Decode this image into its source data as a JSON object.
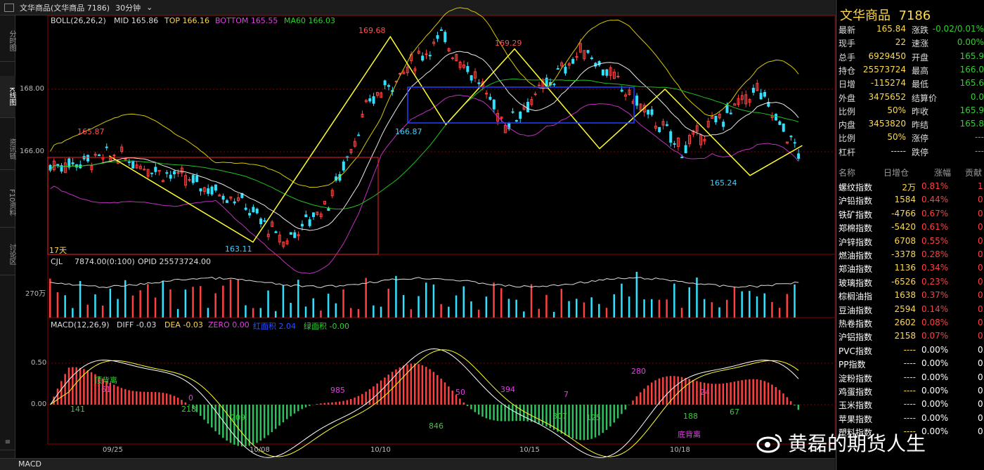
{
  "window": {
    "title": "文华商品(文华商品 7186)",
    "period": "30分钟"
  },
  "sidebar": {
    "tabs": [
      "分时图",
      "K线图",
      "资讯链",
      "F10资料",
      "讨论区"
    ],
    "bottom": "≡"
  },
  "indicators": {
    "boll": "BOLL(26,26,2)",
    "mid": "MID 165.86",
    "top": "TOP 166.16",
    "bottom": "BOTTOM 165.55",
    "ma60": "MA60 166.03",
    "cjl": "CJL",
    "vol": "7874.00(0:100)",
    "opid": "OPID 25573724.00",
    "macd": "MACD(12,26,9)",
    "diff": "DIFF -0.03",
    "dea": "DEA -0.03",
    "zero": "ZERO 0.00",
    "red_area": "红面积 2.04",
    "green_area": "绿面积 -0.00"
  },
  "axes": {
    "price": [
      "168.00",
      "166.00"
    ],
    "vol": "270万",
    "macd": [
      "0.50",
      "0.00"
    ],
    "dates": [
      "09/25",
      "10/08",
      "10/10",
      "10/15",
      "10/18"
    ]
  },
  "chart_data": {
    "type": "candlestick",
    "zigzag": [
      165.87,
      163.11,
      169.68,
      166.87,
      169.29,
      166.1,
      168.0,
      165.24,
      166.2
    ],
    "annotations": [
      "165.87",
      "163.11",
      "169.68",
      "166.87",
      "169.29",
      "165.24",
      "17天"
    ],
    "macd_labels": [
      "顶背离",
      "61",
      "141",
      "218",
      "0",
      "209",
      "985",
      "846",
      "50",
      "394",
      "7",
      "307",
      "125",
      "280",
      "188",
      "24",
      "67",
      "底背离"
    ]
  },
  "quote": {
    "name": "文华商品",
    "code": "7186",
    "rows": [
      [
        "最新",
        "165.84",
        "涨跌",
        "-0.02/0.01%"
      ],
      [
        "现手",
        "22",
        "速涨",
        "0.00%"
      ],
      [
        "总手",
        "6929450",
        "开盘",
        "165.9"
      ],
      [
        "持仓",
        "25573724",
        "最高",
        "166.0"
      ],
      [
        "日增",
        "-115274",
        "最低",
        "165.6"
      ],
      [
        "外盘",
        "3475652",
        "结算价",
        "0.0"
      ],
      [
        "比例",
        "50%",
        "昨收",
        "165.9"
      ],
      [
        "内盘",
        "3453820",
        "昨结",
        "165.8"
      ],
      [
        "比例",
        "50%",
        "涨停",
        "---"
      ],
      [
        "杠杆",
        "-----",
        "跌停",
        "---"
      ]
    ]
  },
  "watch": {
    "headers": [
      "名称",
      "日增仓",
      "涨幅",
      "贡献"
    ],
    "rows": [
      [
        "螺纹指数",
        "2万",
        "0.81%",
        "1."
      ],
      [
        "沪铅指数",
        "1584",
        "0.44%",
        "0."
      ],
      [
        "铁矿指数",
        "-4766",
        "0.67%",
        "0."
      ],
      [
        "郑棉指数",
        "-5420",
        "0.61%",
        "0."
      ],
      [
        "沪锌指数",
        "6708",
        "0.55%",
        "0."
      ],
      [
        "燃油指数",
        "-3378",
        "0.28%",
        "0."
      ],
      [
        "郑油指数",
        "1136",
        "0.34%",
        "0."
      ],
      [
        "玻璃指数",
        "-6526",
        "0.23%",
        "0."
      ],
      [
        "棕榈油指",
        "1638",
        "0.37%",
        "0."
      ],
      [
        "豆油指数",
        "2594",
        "0.14%",
        "0."
      ],
      [
        "热卷指数",
        "2602",
        "0.08%",
        "0."
      ],
      [
        "沪铝指数",
        "2158",
        "0.07%",
        "0."
      ],
      [
        "PVC指数",
        "----",
        "0.00%",
        "0."
      ],
      [
        "PP指数",
        "----",
        "0.00%",
        "0."
      ],
      [
        "淀粉指数",
        "----",
        "0.00%",
        "0."
      ],
      [
        "鸡蛋指数",
        "----",
        "0.00%",
        "0."
      ],
      [
        "玉米指数",
        "----",
        "0.00%",
        "0."
      ],
      [
        "苹果指数",
        "----",
        "0.00%",
        "0."
      ],
      [
        "塑料指数",
        "----",
        "0.00%",
        "0."
      ]
    ]
  },
  "status": "MACD",
  "watermark": "黄磊的期货人生"
}
